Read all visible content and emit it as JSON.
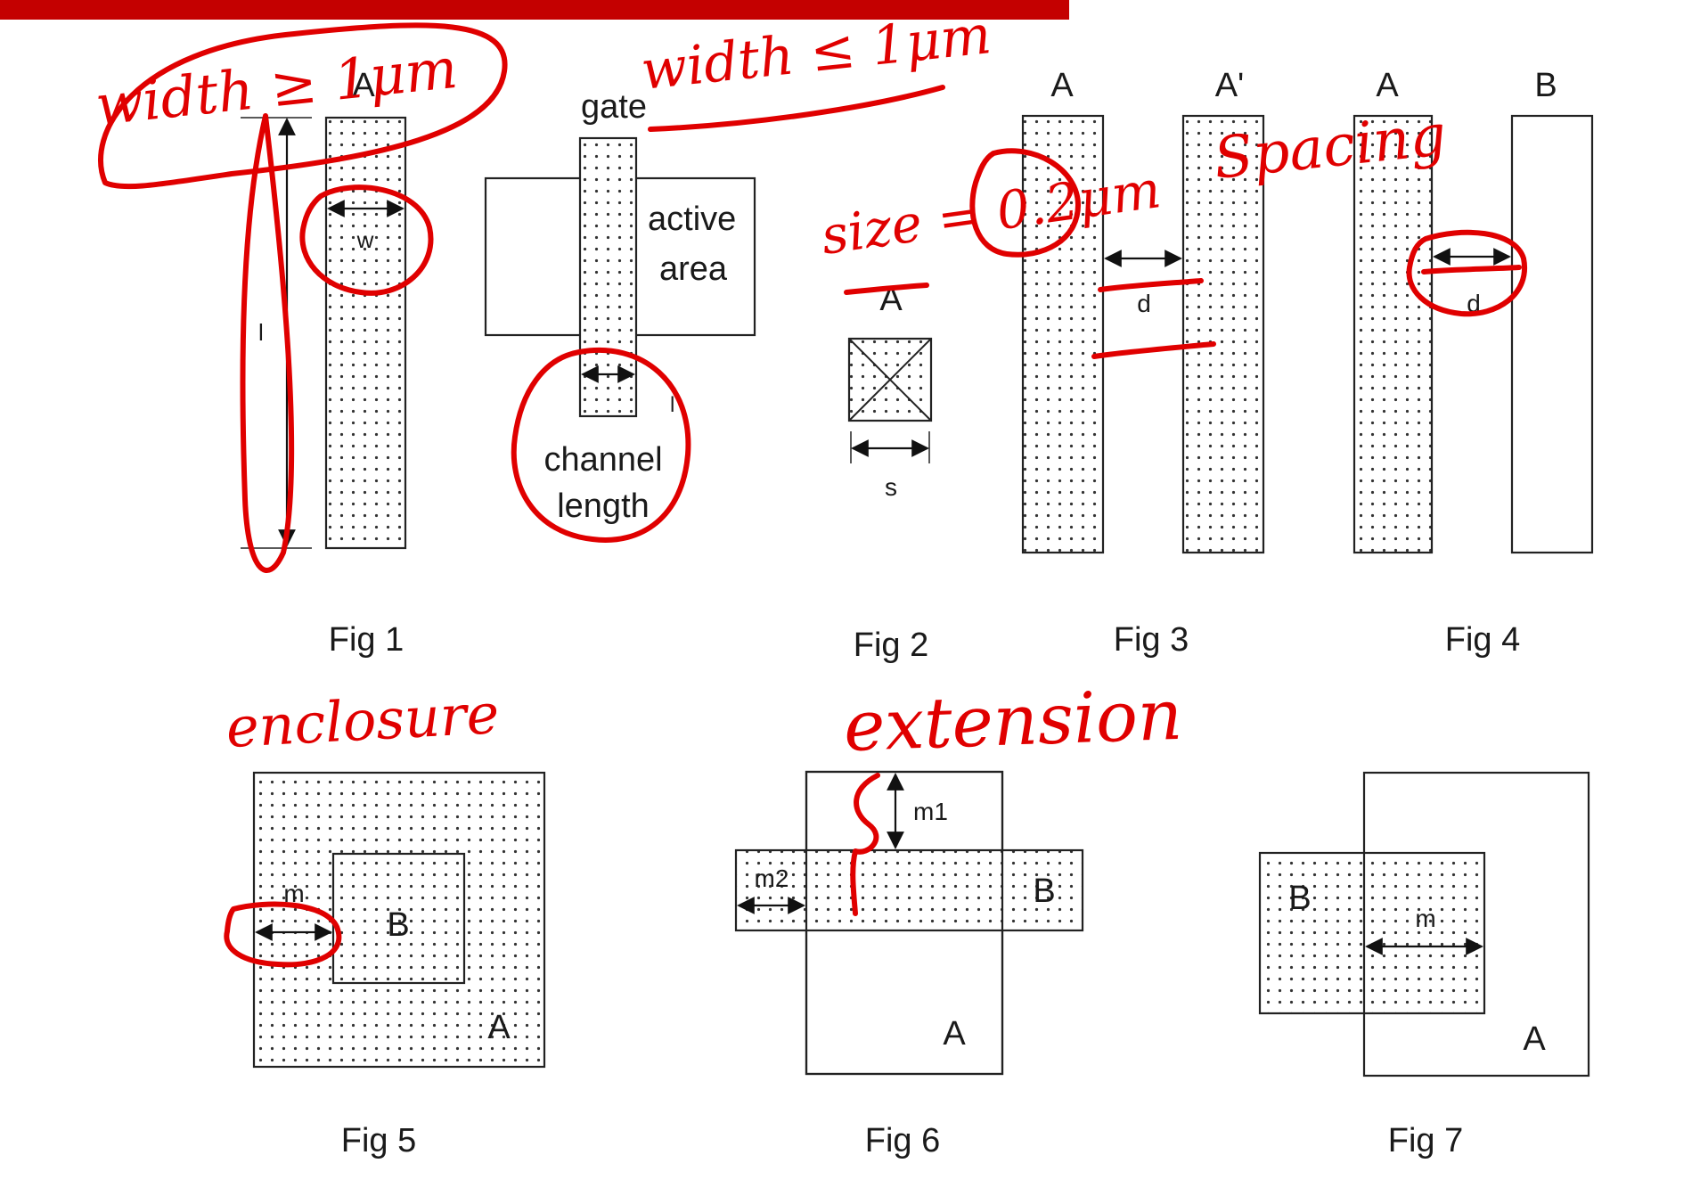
{
  "colors": {
    "ink": "#e00000",
    "banner": "#c40000",
    "dots": "#333333",
    "outline": "#222222"
  },
  "fig1": {
    "layer": "A",
    "width_dim": "w",
    "length_dim": "l",
    "gate": "gate",
    "active1": "active",
    "active2": "area",
    "ch1": "channel",
    "ch2": "length",
    "len_dim": "l",
    "caption": "Fig 1"
  },
  "fig2": {
    "layer": "A",
    "size_dim": "s",
    "caption": "Fig 2"
  },
  "fig3": {
    "layer1": "A",
    "layer2": "A'",
    "dim": "d",
    "caption": "Fig 3"
  },
  "fig4": {
    "layer1": "A",
    "layer2": "B",
    "dim": "d",
    "caption": "Fig 4"
  },
  "fig5": {
    "outer": "A",
    "inner": "B",
    "dim": "m",
    "caption": "Fig 5"
  },
  "fig6": {
    "vertical": "A",
    "horizontal": "B",
    "dim1": "m1",
    "dim2": "m2",
    "caption": "Fig 6"
  },
  "fig7": {
    "outer": "A",
    "inner": "B",
    "dim": "m",
    "caption": "Fig 7"
  },
  "annotations": {
    "width_ge": "width ≥ 1μm",
    "width_le": "width ≤ 1μm",
    "size": "size = 0.2μm",
    "spacing": "Spacing",
    "enclosure": "enclosure",
    "extension": "extension"
  }
}
